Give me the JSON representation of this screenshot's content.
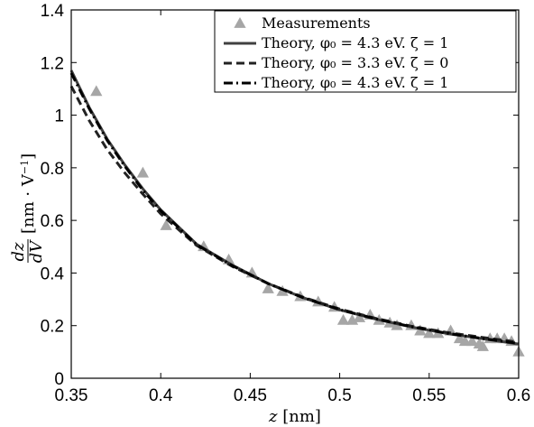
{
  "chart_data": {
    "type": "line",
    "xlabel": "z [nm]",
    "ylabel": "dz/dV [nm · V⁻¹]",
    "xlim": [
      0.35,
      0.6
    ],
    "ylim": [
      0,
      1.4
    ],
    "xticks": [
      "0.35",
      "0.4",
      "0.45",
      "0.5",
      "0.55",
      "0.6"
    ],
    "yticks": [
      "0",
      "0.2",
      "0.4",
      "0.6",
      "0.8",
      "1",
      "1.2",
      "1.4"
    ],
    "grid": false,
    "legend_position": "top-right",
    "series": [
      {
        "name": "Measurements",
        "kind": "scatter",
        "marker": "triangle",
        "color": "#a6a6a6",
        "x": [
          0.364,
          0.39,
          0.403,
          0.424,
          0.438,
          0.451,
          0.46,
          0.468,
          0.478,
          0.488,
          0.497,
          0.502,
          0.507,
          0.511,
          0.517,
          0.522,
          0.528,
          0.532,
          0.54,
          0.545,
          0.55,
          0.555,
          0.562,
          0.567,
          0.57,
          0.574,
          0.578,
          0.58,
          0.584,
          0.588,
          0.592,
          0.596,
          0.6
        ],
        "y": [
          1.09,
          0.78,
          0.58,
          0.5,
          0.45,
          0.4,
          0.34,
          0.33,
          0.31,
          0.29,
          0.27,
          0.22,
          0.22,
          0.23,
          0.24,
          0.22,
          0.21,
          0.2,
          0.2,
          0.18,
          0.17,
          0.17,
          0.18,
          0.15,
          0.14,
          0.14,
          0.13,
          0.12,
          0.15,
          0.15,
          0.15,
          0.14,
          0.1
        ]
      },
      {
        "name": "Theory, φ₀ = 4.3 eV. ζ = 1",
        "kind": "line",
        "style": "solid",
        "color": "#404040",
        "x": [
          0.35,
          0.36,
          0.37,
          0.38,
          0.39,
          0.4,
          0.42,
          0.44,
          0.46,
          0.48,
          0.5,
          0.52,
          0.54,
          0.56,
          0.58,
          0.6
        ],
        "y": [
          1.17,
          1.03,
          0.91,
          0.81,
          0.72,
          0.64,
          0.51,
          0.43,
          0.36,
          0.305,
          0.26,
          0.225,
          0.195,
          0.17,
          0.15,
          0.13
        ]
      },
      {
        "name": "Theory, φ₀ = 3.3 eV. ζ = 0",
        "kind": "line",
        "style": "dashed",
        "color": "#222222",
        "x": [
          0.35,
          0.36,
          0.37,
          0.38,
          0.39,
          0.4,
          0.42,
          0.44,
          0.46,
          0.48,
          0.5,
          0.52,
          0.54,
          0.56,
          0.58,
          0.6
        ],
        "y": [
          1.11,
          0.98,
          0.87,
          0.78,
          0.7,
          0.625,
          0.505,
          0.425,
          0.36,
          0.307,
          0.263,
          0.228,
          0.198,
          0.174,
          0.155,
          0.137
        ]
      },
      {
        "name": "Theory, φ₀ = 4.3 eV. ζ = 1",
        "kind": "line",
        "style": "dashdot",
        "color": "#000000",
        "x": [
          0.35,
          0.36,
          0.37,
          0.38,
          0.39,
          0.4,
          0.42,
          0.44,
          0.46,
          0.48,
          0.5,
          0.52,
          0.54,
          0.56,
          0.58,
          0.6
        ],
        "y": [
          1.16,
          1.025,
          0.905,
          0.805,
          0.715,
          0.637,
          0.508,
          0.428,
          0.36,
          0.305,
          0.261,
          0.226,
          0.196,
          0.171,
          0.151,
          0.132
        ]
      }
    ]
  }
}
